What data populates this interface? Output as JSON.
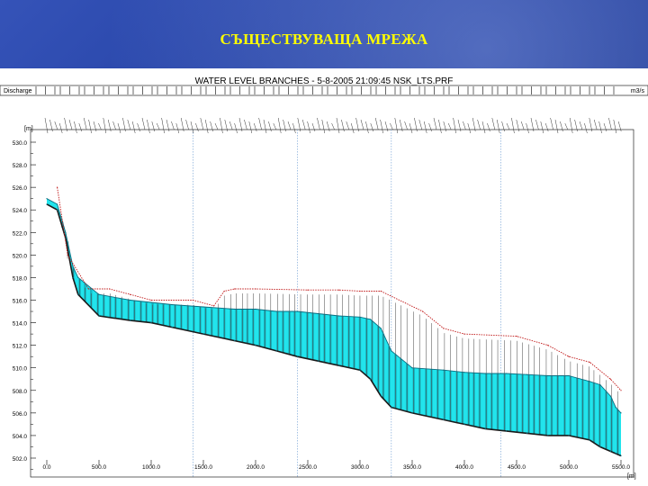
{
  "slide": {
    "title": "СЪЩЕСТВУВАЩА МРЕЖА"
  },
  "chart_data": {
    "type": "area",
    "title": "WATER LEVEL BRANCHES - 5-8-2005 21:09:45 NSK_LTS.PRF",
    "discharge_label": "Discharge",
    "discharge_unit": "m3/s",
    "ylabel": "[m]",
    "xlabel": "[m]",
    "xlim": [
      0,
      5500
    ],
    "ylim": [
      502,
      530
    ],
    "x_ticks": [
      "0.0",
      "500.0",
      "1000.0",
      "1500.0",
      "2000.0",
      "2500.0",
      "3000.0",
      "3500.0",
      "4000.0",
      "4500.0",
      "5000.0",
      "5500.0"
    ],
    "y_ticks": [
      "502.0",
      "504.0",
      "506.0",
      "508.0",
      "510.0",
      "512.0",
      "514.0",
      "516.0",
      "518.0",
      "520.0",
      "522.0",
      "524.0",
      "526.0",
      "528.0",
      "530.0"
    ],
    "vertical_gridlines_x": [
      1400,
      2400,
      3300,
      4350
    ],
    "colors": {
      "water": "#22e4ec",
      "water_edge": "#0a8fa0",
      "bed": "#1a1a1a",
      "bank": "#c01818"
    },
    "series": [
      {
        "name": "",
        "role": "water_level",
        "x": [
          0,
          100,
          180,
          250,
          300,
          500,
          800,
          1000,
          1200,
          1500,
          1800,
          2000,
          2200,
          2400,
          2600,
          2800,
          3000,
          3100,
          3200,
          3300,
          3500,
          3800,
          4000,
          4200,
          4400,
          4600,
          4800,
          5000,
          5200,
          5300,
          5400,
          5450,
          5500
        ],
        "y": [
          525.0,
          524.5,
          522.0,
          519.0,
          518.0,
          516.5,
          516.0,
          515.8,
          515.6,
          515.4,
          515.2,
          515.2,
          515.0,
          515.0,
          514.8,
          514.6,
          514.5,
          514.3,
          513.5,
          511.5,
          510.0,
          509.8,
          509.6,
          509.5,
          509.5,
          509.4,
          509.3,
          509.3,
          508.8,
          508.5,
          507.5,
          506.5,
          506.0
        ]
      },
      {
        "name": "",
        "role": "channel_bed",
        "x": [
          0,
          100,
          180,
          250,
          300,
          500,
          800,
          1000,
          1200,
          1500,
          1800,
          2000,
          2200,
          2400,
          2600,
          2800,
          3000,
          3100,
          3200,
          3300,
          3500,
          3800,
          4000,
          4200,
          4400,
          4600,
          4800,
          5000,
          5200,
          5300,
          5400,
          5450,
          5500
        ],
        "y": [
          524.5,
          524.0,
          521.5,
          518.0,
          516.5,
          514.6,
          514.2,
          514.0,
          513.6,
          513.0,
          512.4,
          512.0,
          511.5,
          511.0,
          510.6,
          510.2,
          509.8,
          509.0,
          507.5,
          506.5,
          506.0,
          505.4,
          505.0,
          504.6,
          504.4,
          504.2,
          504.0,
          504.0,
          503.6,
          503.0,
          502.6,
          502.4,
          502.2
        ]
      },
      {
        "name": "",
        "role": "bank_level",
        "x": [
          100,
          200,
          400,
          600,
          800,
          1000,
          1400,
          1600,
          1700,
          1800,
          2000,
          2500,
          2800,
          3000,
          3200,
          3600,
          3800,
          4000,
          4500,
          4800,
          5000,
          5200,
          5400,
          5500
        ],
        "y": [
          526.0,
          520.0,
          517.0,
          517.0,
          516.5,
          516.0,
          516.0,
          515.5,
          516.8,
          517.0,
          517.0,
          516.9,
          516.9,
          516.8,
          516.8,
          515.0,
          513.5,
          513.0,
          512.8,
          512.0,
          511.0,
          510.5,
          509.0,
          508.0
        ]
      }
    ]
  }
}
